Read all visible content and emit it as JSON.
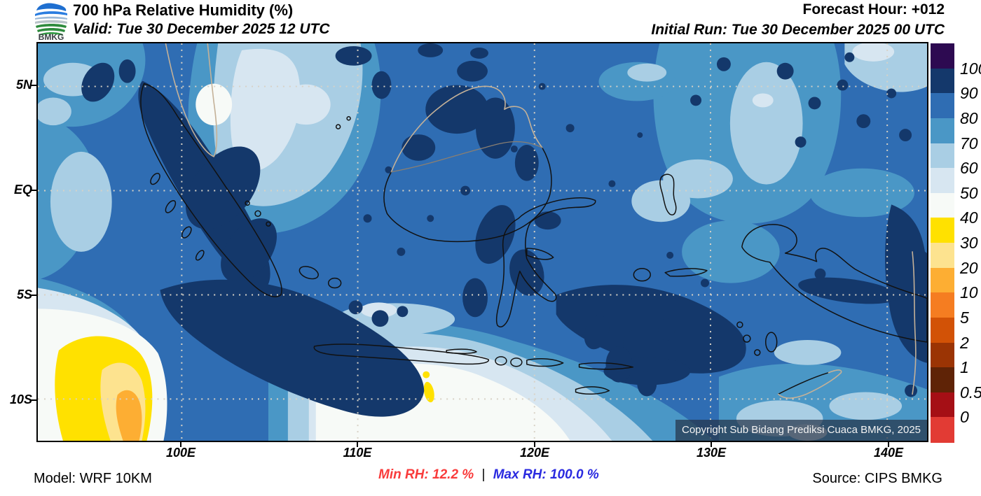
{
  "header": {
    "title": "700 hPa Relative Humidity (%)",
    "valid": "Valid: Tue 30 December 2025 12 UTC",
    "forecast_hour": "Forecast Hour: +012",
    "initial_run": "Initial Run: Tue 30 December 2025 00 UTC",
    "logo_text": "BMKG"
  },
  "map": {
    "copyright": "Copyright Sub Bidang Prediksi Cuaca BMKG, 2025",
    "y_axis_labels": [
      "5N",
      "EQ",
      "5S",
      "10S"
    ],
    "x_axis_labels": [
      "100E",
      "110E",
      "120E",
      "130E",
      "140E"
    ]
  },
  "colorbar": {
    "labels": [
      "100",
      "90",
      "80",
      "70",
      "60",
      "50",
      "40",
      "30",
      "20",
      "10",
      "5",
      "2",
      "1",
      "0.5",
      "0"
    ],
    "colors": [
      "#2d0a51",
      "#14386b",
      "#2f6db3",
      "#4a97c6",
      "#a9cee4",
      "#d7e6f1",
      "#f7faf7",
      "#ffe100",
      "#fde38f",
      "#fdae33",
      "#f57d21",
      "#d25206",
      "#9b3404",
      "#5f2306",
      "#a50f15",
      "#e23b34"
    ]
  },
  "footer": {
    "model": "Model: WRF 10KM",
    "min_rh": "Min RH:  12.2 %",
    "separator": "|",
    "max_rh": "Max RH: 100.0 %",
    "source": "Source: CIPS BMKG",
    "min_color": "#f93b3b",
    "max_color": "#2a2ae0"
  }
}
